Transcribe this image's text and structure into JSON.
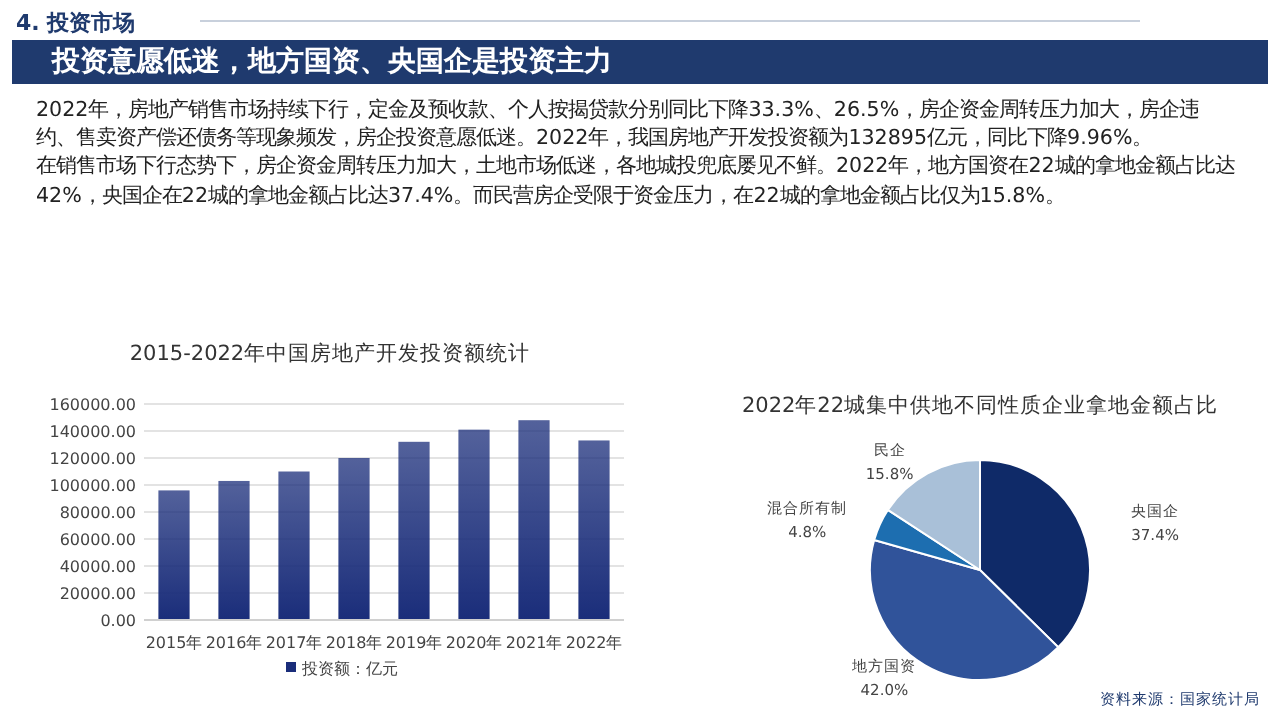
{
  "chart_data": [
    {
      "type": "other",
      "subtitle": "4. 投资市场",
      "title": "投资意愿低迷，地方国资、央国企是投资主力",
      "annotations": [
        "2022年，房地产销售市场持续下行，定金及预收款、个人按揭贷款分别同比下降33.3%、26.5%，房企资金周转压力加大，房企违约、售卖资产偿还债务等现象频发，房企投资意愿低迷。2022年，我国房地产开发投资额为132895亿元，同比下降9.96%。",
        "在销售市场下行态势下，房企资金周转压力加大，土地市场低迷，各地城投兜底屡见不鲜。2022年，地方国资在22城的拿地金额占比达42%，央国企在22城的拿地金额占比达37.4%。而民营房企受限于资金压力，在22城的拿地金额占比仅为15.8%。"
      ]
    },
    {
      "type": "bar",
      "title": "2015-2022年中国房地产开发投资额统计",
      "categories": [
        "2015年",
        "2016年",
        "2017年",
        "2018年",
        "2019年",
        "2020年",
        "2021年",
        "2022年"
      ],
      "series": [
        {
          "name": "投资额：亿元",
          "color": "#1a2d7a",
          "values": [
            96000,
            103000,
            110000,
            120000,
            132000,
            141000,
            148000,
            133000
          ]
        }
      ],
      "ylim": [
        0,
        160000
      ],
      "yticks": [
        {
          "value": 0,
          "label": "0.00"
        },
        {
          "value": 20000,
          "label": "20000.00"
        },
        {
          "value": 40000,
          "label": "40000.00"
        },
        {
          "value": 60000,
          "label": "60000.00"
        },
        {
          "value": 80000,
          "label": "80000.00"
        },
        {
          "value": 100000,
          "label": "100000.00"
        },
        {
          "value": 120000,
          "label": "120000.00"
        },
        {
          "value": 140000,
          "label": "140000.00"
        },
        {
          "value": 160000,
          "label": "160000.00"
        }
      ],
      "grid": "y",
      "legend": "bottom"
    },
    {
      "type": "pie",
      "title": "2022年22城集中供地不同性质企业拿地金额占比",
      "categories": [
        "央国企",
        "地方国资",
        "混合所有制",
        "民企"
      ],
      "values": [
        37.4,
        42.0,
        4.8,
        15.8
      ],
      "value_labels": [
        "37.4%",
        "42.0%",
        "4.8%",
        "15.8%"
      ],
      "colors": [
        "#0f2a68",
        "#30539a",
        "#1d6eb0",
        "#a9c0d8"
      ],
      "annotations": [
        "资料来源：国家统计局"
      ]
    }
  ]
}
